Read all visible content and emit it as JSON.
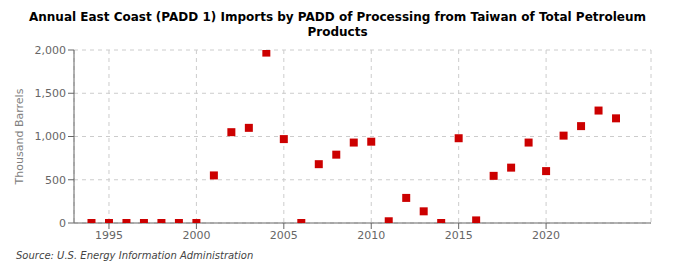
{
  "chart_data": {
    "type": "scatter",
    "title": "Annual East Coast (PADD 1) Imports by PADD of Processing from Taiwan of Total Petroleum\nProducts",
    "ylabel": "Thousand Barrels",
    "source": "Source: U.S. Energy Information Administration",
    "x": [
      1994,
      1995,
      1996,
      1997,
      1998,
      1999,
      2000,
      2001,
      2002,
      2003,
      2004,
      2005,
      2006,
      2007,
      2008,
      2009,
      2010,
      2011,
      2012,
      2013,
      2014,
      2015,
      2016,
      2017,
      2018,
      2019,
      2020,
      2021,
      2022,
      2023,
      2024
    ],
    "values": [
      0,
      0,
      0,
      0,
      0,
      0,
      0,
      550,
      1050,
      1100,
      1970,
      970,
      0,
      680,
      790,
      930,
      940,
      20,
      290,
      135,
      0,
      980,
      30,
      545,
      640,
      930,
      600,
      1010,
      1120,
      1300,
      1210
    ],
    "color": "#cc0000",
    "marker": "square",
    "xlim": [
      1993,
      2026
    ],
    "xticks": [
      1995,
      2000,
      2005,
      2010,
      2015,
      2020
    ],
    "ylim": [
      0,
      2000
    ],
    "yticks": [
      0,
      500,
      {
        "value": 1000,
        "label": "1,000"
      },
      {
        "value": 1500,
        "label": "1,500"
      },
      {
        "value": 2000,
        "label": "2,000"
      }
    ],
    "grid": true
  }
}
